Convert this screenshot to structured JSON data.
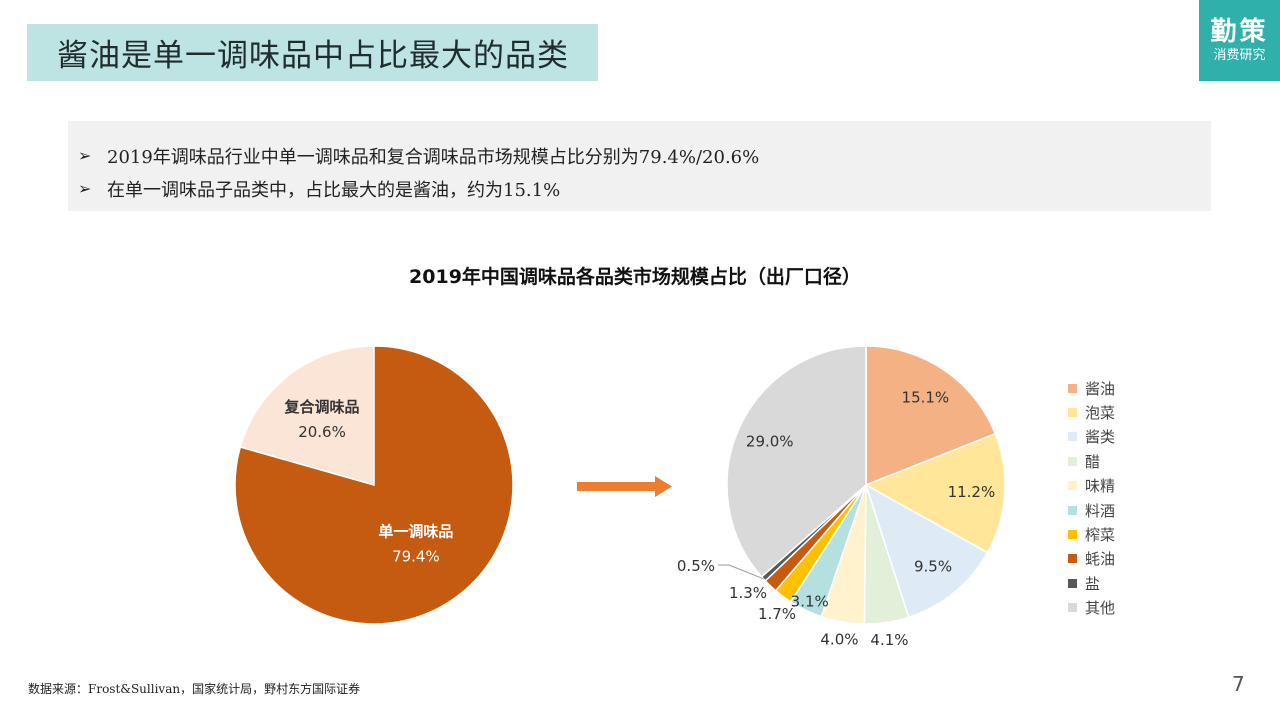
{
  "header": {
    "title": "酱油是单一调味品中占比最大的品类"
  },
  "logo": {
    "main": "勤策",
    "sub": "消费研究"
  },
  "summary": {
    "bullet": "➢",
    "lines": [
      "2019年调味品行业中单一调味品和复合调味品市场规模占比分别为79.4%/20.6%",
      "在单一调味品子品类中，占比最大的是酱油，约为15.1%"
    ]
  },
  "chart_data": {
    "title": "2019年中国调味品各品类市场规模占比（出厂口径）",
    "charts": [
      {
        "type": "pie",
        "slices": [
          {
            "name": "复合调味品",
            "value": 20.6,
            "label": "20.6%",
            "color": "#fbe5d6"
          },
          {
            "name": "单一调味品",
            "value": 79.4,
            "label": "79.4%",
            "color": "#c55a11"
          }
        ]
      },
      {
        "type": "pie",
        "slices": [
          {
            "name": "酱油",
            "value": 15.1,
            "label": "15.1%",
            "color": "#f4b183"
          },
          {
            "name": "泡菜",
            "value": 11.2,
            "label": "11.2%",
            "color": "#ffe699"
          },
          {
            "name": "酱类",
            "value": 9.5,
            "label": "9.5%",
            "color": "#deebf7"
          },
          {
            "name": "醋",
            "value": 4.1,
            "label": "4.1%",
            "color": "#e2f0d9"
          },
          {
            "name": "味精",
            "value": 4.0,
            "label": "4.0%",
            "color": "#fff2cc"
          },
          {
            "name": "料酒",
            "value": 3.1,
            "label": "3.1%",
            "color": "#b4e0e0"
          },
          {
            "name": "榨菜",
            "value": 1.7,
            "label": "1.7%",
            "color": "#ffc000"
          },
          {
            "name": "蚝油",
            "value": 1.3,
            "label": "1.3%",
            "color": "#c55a11"
          },
          {
            "name": "盐",
            "value": 0.5,
            "label": "0.5%",
            "color": "#595959"
          },
          {
            "name": "其他",
            "value": 29.0,
            "label": "29.0%",
            "color": "#d9d9d9"
          }
        ]
      }
    ],
    "arrow_color": "#ed7d31"
  },
  "footer": {
    "source": "数据来源：Frost&Sullivan，国家统计局，野村东方国际证券",
    "page": "7"
  }
}
